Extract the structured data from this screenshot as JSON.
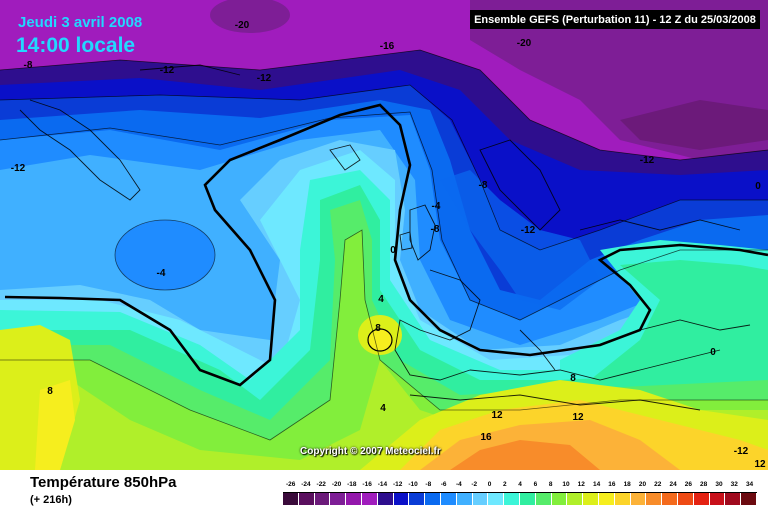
{
  "header": {
    "date": "Jeudi 3 avril 2008",
    "time": "14:00 locale",
    "run_info": "Ensemble GEFS (Perturbation 11)  -  12 Z du 25/03/2008"
  },
  "copyright": "Copyright © 2007 Meteociel.fr",
  "footer": {
    "parameter": "Température 850hPa",
    "lead": "(+ 216h)"
  },
  "isotherm_labels": [
    "-20",
    "-16",
    "-20",
    "-12",
    "-12",
    "-8",
    "-12",
    "-8",
    "-4",
    "-4",
    "0",
    "4",
    "8",
    "4",
    "8",
    "-12",
    "-8",
    "-12",
    "-12",
    "0",
    "8",
    "12",
    "16",
    "12",
    "12",
    "0"
  ],
  "legend": {
    "ticks": [
      "-26",
      "-24",
      "-22",
      "-20",
      "-18",
      "-16",
      "-14",
      "-12",
      "-10",
      "-8",
      "-6",
      "-4",
      "-2",
      "0",
      "2",
      "4",
      "6",
      "8",
      "10",
      "12",
      "14",
      "16",
      "18",
      "20",
      "22",
      "24",
      "26",
      "28",
      "30",
      "32",
      "34"
    ],
    "colors": [
      "#3a0a3a",
      "#5a0f5e",
      "#6c1a7a",
      "#7e1e96",
      "#9417ac",
      "#a01cbd",
      "#2e0e8e",
      "#0a10c8",
      "#0a3cd6",
      "#0a6af0",
      "#1f8cff",
      "#40b0ff",
      "#66ceff",
      "#6ee8ff",
      "#3cf5d8",
      "#30eea0",
      "#56ec6a",
      "#82ee3c",
      "#b0ef2a",
      "#dcef1a",
      "#f6ee1e",
      "#fcd42a",
      "#fcb238",
      "#f88c2a",
      "#f46a1c",
      "#ee4a14",
      "#e42212",
      "#c8101a",
      "#a00a1e",
      "#6c0a10"
    ]
  }
}
